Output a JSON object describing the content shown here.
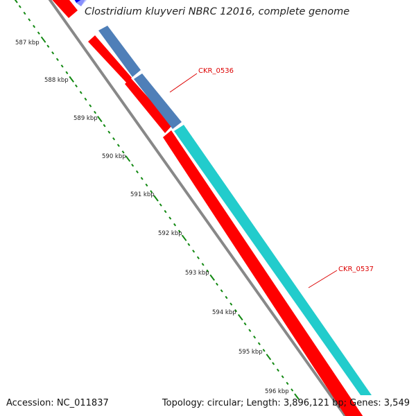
{
  "title": "Clostridium kluyveri NBRC 12016, complete genome",
  "accession": "Accession: NC_011837",
  "summary": "Topology: circular; Length: 3,896,121 bp; Genes: 3,549",
  "ruler": {
    "unit": "kbp",
    "labels": [
      "587 kbp",
      "588 kbp",
      "589 kbp",
      "590 kbp",
      "591 kbp",
      "592 kbp",
      "593 kbp",
      "594 kbp",
      "595 kbp",
      "596 kbp"
    ]
  },
  "genes": [
    {
      "id": "CKR_0536",
      "label": "CKR_0536",
      "type": "CDS"
    },
    {
      "id": "CKR_0537",
      "label": "CKR_0537",
      "type": "CDS"
    }
  ],
  "colors": {
    "cds_red": "#ff0000",
    "cds_steelblue": "#4f7fb8",
    "cds_cyan": "#22cccc",
    "cds_blue": "#0000ee",
    "backbone": "#888888",
    "ruler": "#118811",
    "callout": "#dd0000",
    "tick_label": "#222222"
  }
}
